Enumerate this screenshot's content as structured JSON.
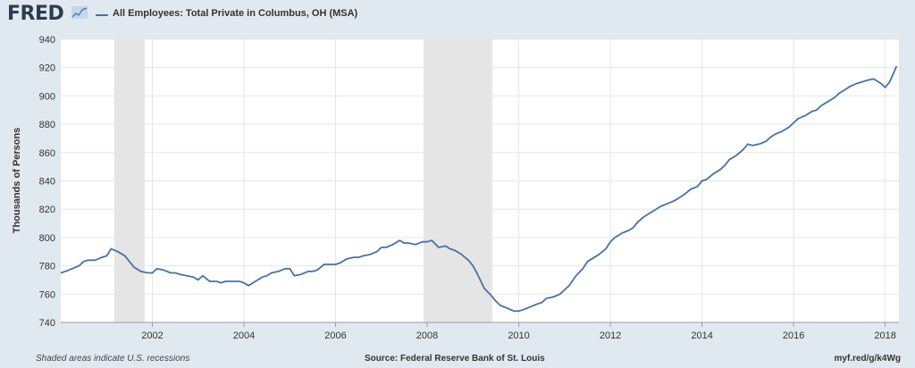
{
  "header": {
    "logo": "FRED",
    "series_title": "All Employees: Total Private in Columbus, OH (MSA)"
  },
  "footer": {
    "note": "Shaded areas indicate U.S. recessions",
    "source": "Source: Federal Reserve Bank of St. Louis",
    "url": "myf.red/g/k4Wg"
  },
  "colors": {
    "line": "#4572a7",
    "recession": "#e5e5e5",
    "plot_bg": "#ffffff",
    "page_bg": "#e1e9f0"
  },
  "chart_data": {
    "type": "line",
    "ylabel": "Thousands of Persons",
    "xlabel": "",
    "ylim": [
      740,
      940
    ],
    "yticks": [
      740,
      760,
      780,
      800,
      820,
      840,
      860,
      880,
      900,
      920,
      940
    ],
    "xlim": [
      2000.0,
      2018.3
    ],
    "xticks": [
      2002,
      2004,
      2006,
      2008,
      2010,
      2012,
      2014,
      2016,
      2018
    ],
    "grid": true,
    "recessions": [
      [
        2001.17,
        2001.83
      ],
      [
        2007.92,
        2009.42
      ]
    ],
    "series": [
      {
        "x": [
          2000.0,
          2000.1,
          2000.25,
          2000.4,
          2000.5,
          2000.6,
          2000.75,
          2000.9,
          2001.0,
          2001.1,
          2001.25,
          2001.4,
          2001.5,
          2001.6,
          2001.75,
          2001.9,
          2002.0,
          2002.1,
          2002.25,
          2002.4,
          2002.5,
          2002.6,
          2002.75,
          2002.9,
          2003.0,
          2003.1,
          2003.25,
          2003.4,
          2003.5,
          2003.6,
          2003.75,
          2003.9,
          2004.0,
          2004.1,
          2004.25,
          2004.4,
          2004.5,
          2004.6,
          2004.75,
          2004.9,
          2005.0,
          2005.1,
          2005.25,
          2005.4,
          2005.5,
          2005.6,
          2005.75,
          2005.9,
          2006.0,
          2006.1,
          2006.25,
          2006.4,
          2006.5,
          2006.6,
          2006.75,
          2006.9,
          2007.0,
          2007.1,
          2007.25,
          2007.4,
          2007.5,
          2007.6,
          2007.75,
          2007.9,
          2008.0,
          2008.1,
          2008.25,
          2008.4,
          2008.5,
          2008.6,
          2008.75,
          2008.9,
          2009.0,
          2009.1,
          2009.25,
          2009.4,
          2009.5,
          2009.6,
          2009.75,
          2009.9,
          2010.0,
          2010.1,
          2010.25,
          2010.4,
          2010.5,
          2010.6,
          2010.75,
          2010.9,
          2011.0,
          2011.1,
          2011.25,
          2011.4,
          2011.5,
          2011.6,
          2011.75,
          2011.9,
          2012.0,
          2012.1,
          2012.25,
          2012.4,
          2012.5,
          2012.6,
          2012.75,
          2012.9,
          2013.0,
          2013.1,
          2013.25,
          2013.4,
          2013.5,
          2013.6,
          2013.75,
          2013.9,
          2014.0,
          2014.1,
          2014.25,
          2014.4,
          2014.5,
          2014.6,
          2014.75,
          2014.9,
          2015.0,
          2015.1,
          2015.25,
          2015.4,
          2015.5,
          2015.6,
          2015.75,
          2015.9,
          2016.0,
          2016.1,
          2016.25,
          2016.4,
          2016.5,
          2016.6,
          2016.75,
          2016.9,
          2017.0,
          2017.1,
          2017.25,
          2017.4,
          2017.5,
          2017.6,
          2017.75,
          2017.9,
          2018.0,
          2018.1,
          2018.25
        ],
        "values": [
          775,
          776,
          778,
          780,
          783,
          784,
          784,
          786,
          787,
          792,
          790,
          787,
          783,
          779,
          776,
          775,
          775,
          778,
          777,
          775,
          775,
          774,
          773,
          772,
          770,
          773,
          769,
          769,
          768,
          769,
          769,
          769,
          768,
          766,
          769,
          772,
          773,
          775,
          776,
          778,
          778,
          773,
          774,
          776,
          776,
          777,
          781,
          781,
          781,
          782,
          785,
          786,
          786,
          787,
          788,
          790,
          793,
          793,
          795,
          798,
          796,
          796,
          795,
          797,
          797,
          798,
          793,
          794,
          792,
          791,
          788,
          784,
          780,
          774,
          764,
          759,
          755,
          752,
          750,
          748,
          748,
          749,
          751,
          753,
          754,
          757,
          758,
          760,
          763,
          766,
          773,
          778,
          783,
          785,
          788,
          792,
          797,
          800,
          803,
          805,
          807,
          811,
          815,
          818,
          820,
          822,
          824,
          826,
          828,
          830,
          834,
          836,
          840,
          841,
          845,
          848,
          851,
          855,
          858,
          862,
          866,
          865,
          866,
          868,
          871,
          873,
          875,
          878,
          881,
          884,
          886,
          889,
          890,
          893,
          896,
          899,
          902,
          904,
          907,
          909,
          910,
          911,
          912,
          909,
          906,
          910,
          921
        ]
      }
    ]
  }
}
